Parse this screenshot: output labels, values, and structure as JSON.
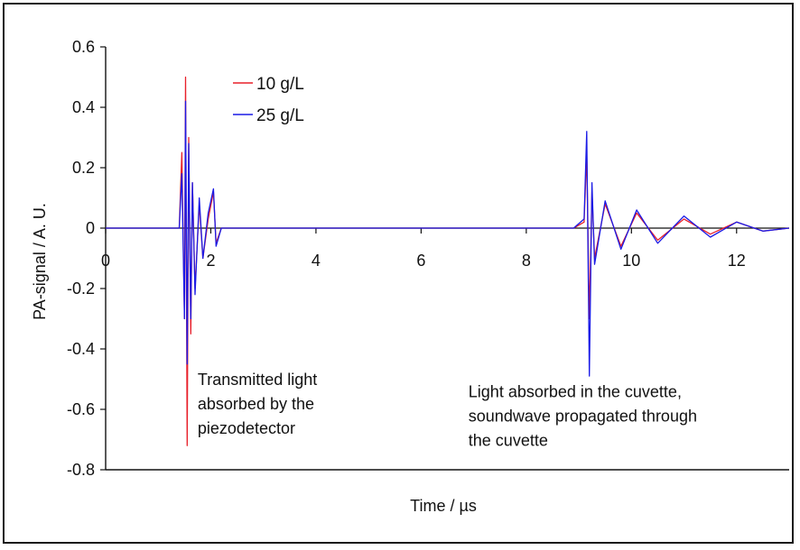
{
  "chart_data": {
    "type": "line",
    "title": "",
    "xlabel": "Time / µs",
    "ylabel": "PA-signal / A. U.",
    "xlim": [
      0,
      13
    ],
    "ylim": [
      -0.8,
      0.6
    ],
    "x_ticks": [
      "0",
      "2",
      "4",
      "6",
      "8",
      "10",
      "12"
    ],
    "x_tick_values": [
      0,
      2,
      4,
      6,
      8,
      10,
      12
    ],
    "y_ticks": [
      "0.6",
      "0.4",
      "0.2",
      "0",
      "-0.2",
      "-0.4",
      "-0.6",
      "-0.8"
    ],
    "y_tick_values": [
      0.6,
      0.4,
      0.2,
      0,
      -0.2,
      -0.4,
      -0.6,
      -0.8
    ],
    "grid": false,
    "legend_position": "top-left",
    "series": [
      {
        "name": "10 g/L",
        "color": "#e8202a",
        "x": [
          0.0,
          1.4,
          1.45,
          1.5,
          1.52,
          1.55,
          1.58,
          1.62,
          1.65,
          1.7,
          1.78,
          1.85,
          1.95,
          2.05,
          2.1,
          2.2,
          8.9,
          9.1,
          9.15,
          9.2,
          9.25,
          9.3,
          9.5,
          9.8,
          10.1,
          10.5,
          11.0,
          11.5,
          12.0,
          12.5,
          13.0
        ],
        "y": [
          0.0,
          0.0,
          0.25,
          -0.3,
          0.5,
          -0.72,
          0.3,
          -0.35,
          0.15,
          -0.2,
          0.08,
          -0.1,
          0.03,
          0.12,
          -0.05,
          0.0,
          0.0,
          0.02,
          0.25,
          -0.3,
          0.12,
          -0.1,
          0.08,
          -0.06,
          0.05,
          -0.04,
          0.03,
          -0.02,
          0.02,
          -0.01,
          0.0
        ]
      },
      {
        "name": "25 g/L",
        "color": "#1a1ae6",
        "x": [
          0.0,
          1.4,
          1.45,
          1.5,
          1.52,
          1.55,
          1.58,
          1.62,
          1.65,
          1.7,
          1.78,
          1.85,
          1.95,
          2.05,
          2.1,
          2.2,
          8.9,
          9.1,
          9.15,
          9.2,
          9.25,
          9.3,
          9.5,
          9.8,
          10.1,
          10.5,
          11.0,
          11.5,
          12.0,
          12.5,
          13.0
        ],
        "y": [
          0.0,
          0.0,
          0.18,
          -0.3,
          0.42,
          -0.45,
          0.28,
          -0.3,
          0.15,
          -0.22,
          0.1,
          -0.1,
          0.05,
          0.13,
          -0.06,
          0.0,
          0.0,
          0.03,
          0.32,
          -0.49,
          0.15,
          -0.12,
          0.09,
          -0.07,
          0.06,
          -0.05,
          0.04,
          -0.03,
          0.02,
          -0.01,
          0.0
        ]
      }
    ],
    "annotations": [
      {
        "lines": [
          "Transmitted light",
          "absorbed by the",
          "piezodetector"
        ],
        "x": 1.75,
        "y": -0.52
      },
      {
        "lines": [
          "Light absorbed in the cuvette,",
          "soundwave propagated through",
          "the cuvette"
        ],
        "x": 6.9,
        "y": -0.56
      }
    ]
  }
}
